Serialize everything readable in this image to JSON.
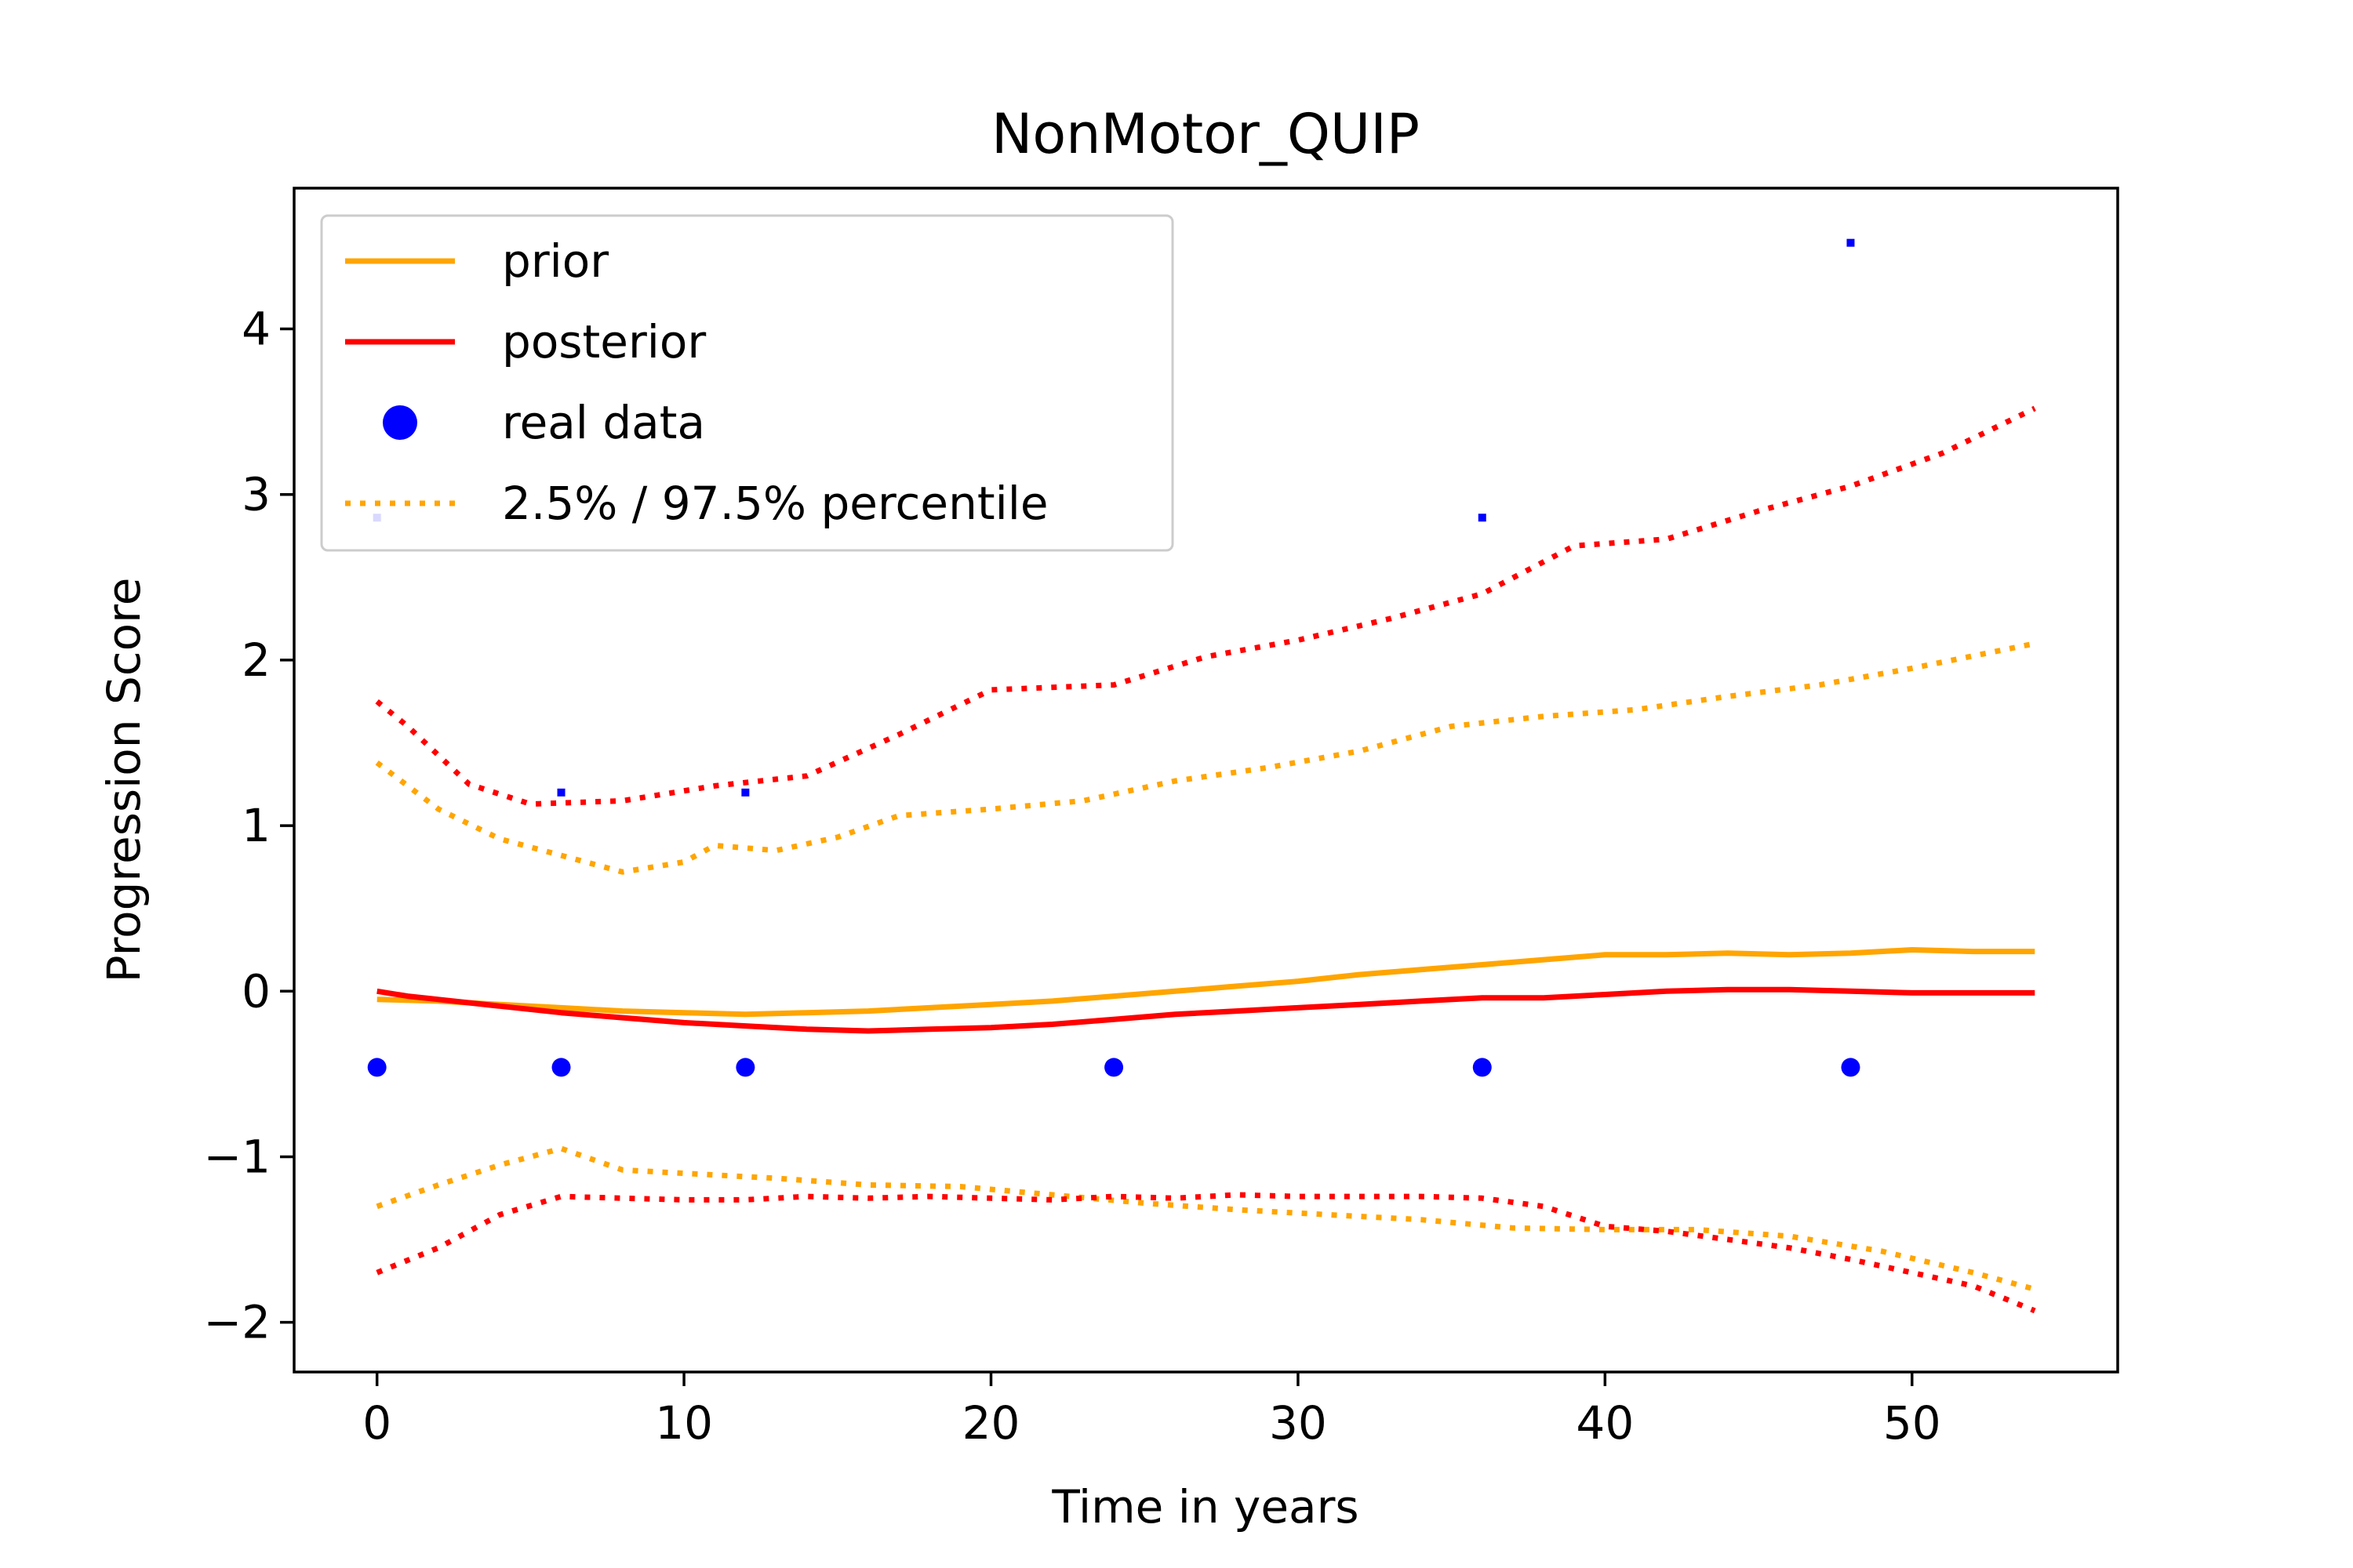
{
  "chart_data": {
    "type": "line",
    "title": "NonMotor_QUIP",
    "xlabel": "Time in years",
    "ylabel": "Progression Score",
    "xlim": [
      -2.7,
      56.7
    ],
    "ylim": [
      -2.3,
      4.85
    ],
    "xticks": [
      0,
      10,
      20,
      30,
      40,
      50
    ],
    "xtick_labels": [
      "0",
      "10",
      "20",
      "30",
      "40",
      "50"
    ],
    "yticks": [
      -2,
      -1,
      0,
      1,
      2,
      3,
      4
    ],
    "ytick_labels": [
      "−2",
      "−1",
      "0",
      "1",
      "2",
      "3",
      "4"
    ],
    "grid": false,
    "legend_position": "upper-left",
    "legend": [
      {
        "label": "prior",
        "style": "solid",
        "color": "#ffa500",
        "marker": "none"
      },
      {
        "label": "posterior",
        "style": "solid",
        "color": "#ff0000",
        "marker": "none"
      },
      {
        "label": "real data",
        "style": "none",
        "color": "#0000ff",
        "marker": "circle"
      },
      {
        "label": "2.5% / 97.5% percentile",
        "style": "dotted",
        "color": "#ffa500",
        "marker": "none"
      }
    ],
    "series": [
      {
        "name": "prior",
        "color": "#ffa500",
        "style": "solid",
        "x": [
          0,
          2,
          4,
          6,
          8,
          10,
          12,
          14,
          16,
          18,
          20,
          22,
          24,
          26,
          28,
          30,
          32,
          34,
          36,
          38,
          40,
          42,
          44,
          46,
          48,
          50,
          52,
          54
        ],
        "y": [
          -0.05,
          -0.06,
          -0.08,
          -0.1,
          -0.12,
          -0.13,
          -0.14,
          -0.13,
          -0.12,
          -0.1,
          -0.08,
          -0.06,
          -0.03,
          0.0,
          0.03,
          0.06,
          0.1,
          0.13,
          0.16,
          0.19,
          0.22,
          0.22,
          0.23,
          0.22,
          0.23,
          0.25,
          0.24,
          0.24
        ]
      },
      {
        "name": "posterior",
        "color": "#ff0000",
        "style": "solid",
        "x": [
          0,
          1,
          2,
          4,
          6,
          8,
          10,
          12,
          14,
          16,
          18,
          20,
          22,
          24,
          26,
          28,
          30,
          32,
          34,
          36,
          38,
          40,
          42,
          44,
          46,
          48,
          50,
          52,
          54
        ],
        "y": [
          0.0,
          -0.03,
          -0.05,
          -0.09,
          -0.13,
          -0.16,
          -0.19,
          -0.21,
          -0.23,
          -0.24,
          -0.23,
          -0.22,
          -0.2,
          -0.17,
          -0.14,
          -0.12,
          -0.1,
          -0.08,
          -0.06,
          -0.04,
          -0.04,
          -0.02,
          0.0,
          0.01,
          0.01,
          0.0,
          -0.01,
          -0.01,
          -0.01
        ]
      },
      {
        "name": "prior 97.5% percentile",
        "color": "#ffa500",
        "style": "dotted",
        "x": [
          0,
          2,
          4,
          6,
          8,
          10,
          11,
          13,
          15,
          17,
          20,
          23,
          26,
          29,
          32,
          35,
          38,
          41,
          44,
          47,
          50,
          54
        ],
        "y": [
          1.38,
          1.1,
          0.92,
          0.82,
          0.72,
          0.78,
          0.88,
          0.85,
          0.93,
          1.06,
          1.1,
          1.15,
          1.27,
          1.35,
          1.45,
          1.6,
          1.66,
          1.7,
          1.78,
          1.85,
          1.95,
          2.1
        ]
      },
      {
        "name": "posterior 97.5% percentile",
        "color": "#ff0000",
        "style": "dotted",
        "x": [
          0,
          1,
          3,
          5,
          8,
          11,
          14,
          17,
          20,
          24,
          27,
          30,
          33,
          36,
          39,
          42,
          45,
          48,
          51,
          54
        ],
        "y": [
          1.75,
          1.6,
          1.25,
          1.13,
          1.15,
          1.24,
          1.3,
          1.55,
          1.82,
          1.85,
          2.02,
          2.12,
          2.25,
          2.4,
          2.69,
          2.73,
          2.9,
          3.05,
          3.25,
          3.52
        ]
      },
      {
        "name": "prior 2.5% percentile",
        "color": "#ffa500",
        "style": "dotted",
        "x": [
          0,
          2,
          4,
          6,
          8,
          10,
          13,
          16,
          19,
          22,
          25,
          28,
          31,
          34,
          37,
          40,
          43,
          46,
          49,
          52,
          54
        ],
        "y": [
          -1.3,
          -1.17,
          -1.05,
          -0.95,
          -1.08,
          -1.1,
          -1.13,
          -1.17,
          -1.18,
          -1.23,
          -1.28,
          -1.32,
          -1.35,
          -1.38,
          -1.43,
          -1.44,
          -1.44,
          -1.48,
          -1.57,
          -1.7,
          -1.8
        ]
      },
      {
        "name": "posterior 2.5% percentile",
        "color": "#ff0000",
        "style": "dotted",
        "x": [
          0,
          2,
          4,
          6,
          8,
          10,
          12,
          14,
          16,
          18,
          20,
          22,
          24,
          26,
          28,
          30,
          32,
          34,
          36,
          38,
          40,
          42,
          44,
          46,
          48,
          50,
          52,
          54
        ],
        "y": [
          -1.7,
          -1.55,
          -1.35,
          -1.24,
          -1.25,
          -1.26,
          -1.26,
          -1.24,
          -1.25,
          -1.24,
          -1.25,
          -1.26,
          -1.24,
          -1.25,
          -1.23,
          -1.24,
          -1.24,
          -1.24,
          -1.25,
          -1.3,
          -1.42,
          -1.45,
          -1.5,
          -1.55,
          -1.62,
          -1.7,
          -1.78,
          -1.93
        ]
      }
    ],
    "points": [
      {
        "name": "real data",
        "color": "#0000ff",
        "size": "large",
        "x": [
          0,
          6,
          12,
          24,
          36,
          48
        ],
        "y": [
          -0.46,
          -0.46,
          -0.46,
          -0.46,
          -0.46,
          -0.46
        ]
      },
      {
        "name": "real data",
        "color": "#0000ff",
        "size": "small",
        "x": [
          0,
          6,
          12,
          36,
          48
        ],
        "y": [
          2.86,
          1.2,
          1.2,
          2.86,
          4.52
        ]
      }
    ]
  }
}
